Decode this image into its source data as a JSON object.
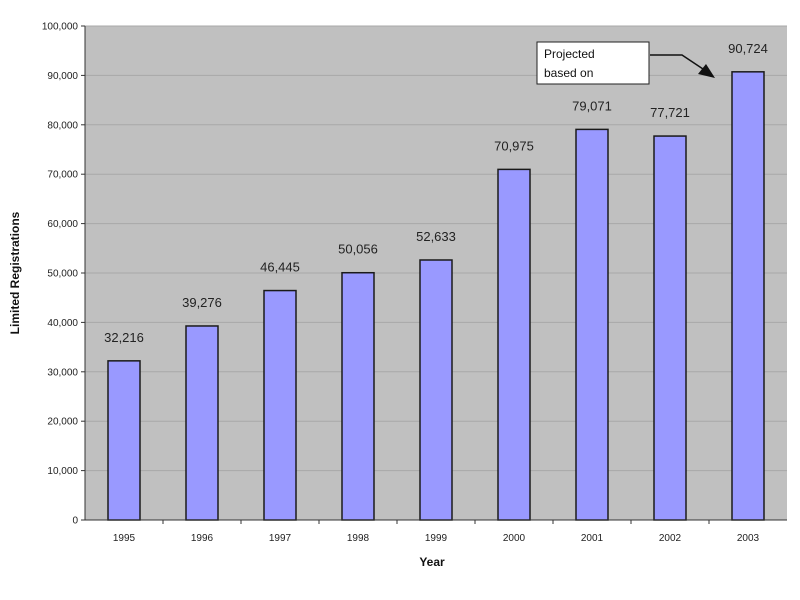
{
  "chart_data": {
    "type": "bar",
    "categories": [
      "1995",
      "1996",
      "1997",
      "1998",
      "1999",
      "2000",
      "2001",
      "2002",
      "2003"
    ],
    "values": [
      32216,
      39276,
      46445,
      50056,
      52633,
      70975,
      79071,
      77721,
      90724
    ],
    "data_labels": [
      "32,216",
      "39,276",
      "46,445",
      "50,056",
      "52,633",
      "70,975",
      "79,071",
      "77,721",
      "90,724"
    ],
    "xlabel": "Year",
    "ylabel": "Limited Registrations",
    "ylim": [
      0,
      100000
    ],
    "y_ticks": [
      "0",
      "10,000",
      "20,000",
      "30,000",
      "40,000",
      "50,000",
      "60,000",
      "70,000",
      "80,000",
      "90,000",
      "100,000"
    ],
    "grid": true,
    "legend": "none",
    "annotation": {
      "lines": [
        "Projected",
        "based on"
      ],
      "target_category": "2003"
    },
    "colors": {
      "plot_background": "#c0c0c0",
      "bar_fill": "#9999ff",
      "bar_stroke": "#1a1a1a",
      "gridline": "#a8a8a8",
      "annotation_box": "#ffffff"
    }
  }
}
